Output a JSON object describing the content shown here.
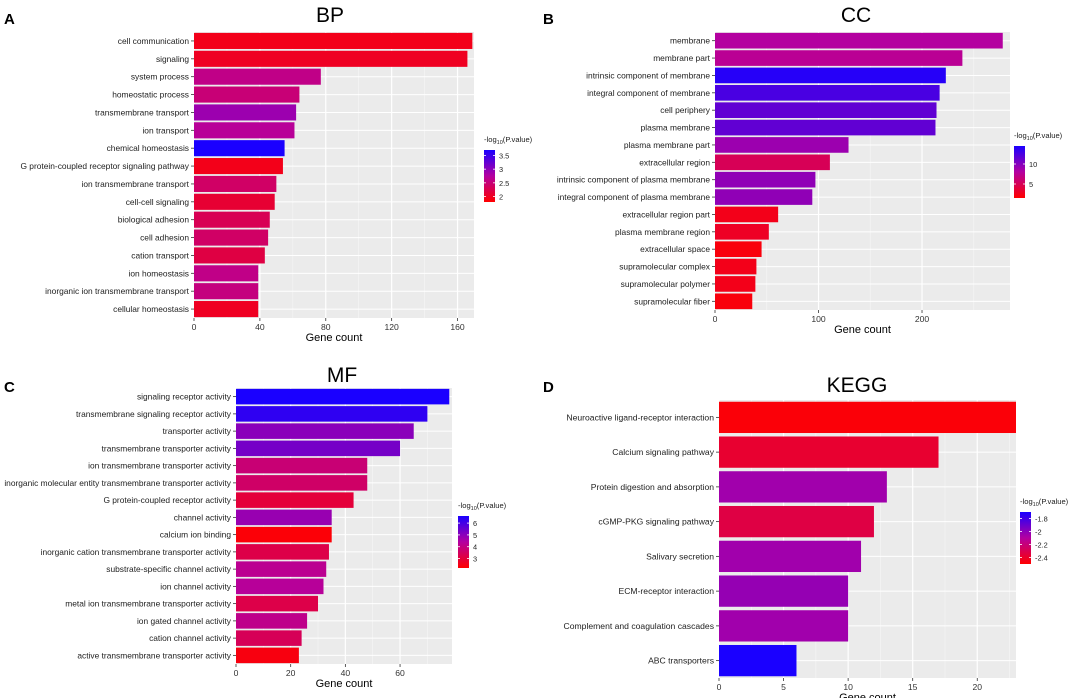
{
  "chart_data": [
    {
      "panel": "A",
      "type": "bar",
      "orientation": "horizontal",
      "title": "BP",
      "xlabel": "Gene count",
      "ylabel": "",
      "xlim": [
        0,
        170
      ],
      "xticks": [
        0,
        40,
        80,
        120,
        160
      ],
      "grid": true,
      "legend": {
        "title_prefix": "-log",
        "title_sub": "10",
        "title_suffix": "(P.value)",
        "ticks": [
          3.5,
          3.0,
          2.5,
          2.0
        ],
        "range": [
          1.8,
          3.7
        ],
        "colors": [
          "#ff0000",
          "#1a00ff"
        ],
        "placement": "right"
      },
      "categories": [
        "cell communication",
        "signaling",
        "system process",
        "homeostatic process",
        "transmembrane transport",
        "ion transport",
        "chemical homeostasis",
        "G protein-coupled receptor signaling pathway",
        "ion transmembrane transport",
        "cell-cell signaling",
        "biological adhesion",
        "cell adhesion",
        "cation transport",
        "ion homeostasis",
        "inorganic ion transmembrane transport",
        "cellular homeostasis"
      ],
      "values": [
        169,
        166,
        77,
        64,
        62,
        61,
        55,
        54,
        50,
        49,
        46,
        45,
        43,
        39,
        39,
        39
      ],
      "color_values": [
        1.95,
        2.0,
        2.6,
        2.5,
        2.9,
        2.7,
        3.7,
        1.95,
        2.4,
        2.1,
        2.3,
        2.4,
        2.2,
        2.6,
        2.55,
        2.0
      ]
    },
    {
      "panel": "B",
      "type": "bar",
      "orientation": "horizontal",
      "title": "CC",
      "xlabel": "Gene count",
      "ylabel": "",
      "xlim": [
        0,
        285
      ],
      "xticks": [
        0,
        100,
        200
      ],
      "grid": true,
      "legend": {
        "title_prefix": "-log",
        "title_sub": "10",
        "title_suffix": "(P.value)",
        "ticks": [
          10,
          5
        ],
        "range": [
          1.5,
          14.5
        ],
        "colors": [
          "#ff0000",
          "#1a00ff"
        ],
        "placement": "right"
      },
      "categories": [
        "membrane",
        "membrane part",
        "intrinsic component of membrane",
        "integral component of membrane",
        "cell periphery",
        "plasma membrane",
        "plasma membrane part",
        "extracellular region",
        "intrinsic component of plasma membrane",
        "integral component of plasma membrane",
        "extracellular region part",
        "plasma membrane region",
        "extracellular space",
        "supramolecular complex",
        "supramolecular polymer",
        "supramolecular fiber"
      ],
      "values": [
        278,
        239,
        223,
        217,
        214,
        213,
        129,
        111,
        97,
        94,
        61,
        52,
        45,
        40,
        39,
        36
      ],
      "color_values": [
        8.0,
        7.5,
        14.0,
        12.5,
        11.5,
        11.5,
        9.0,
        5.0,
        9.5,
        9.5,
        2.5,
        3.0,
        2.0,
        2.5,
        2.5,
        2.0
      ]
    },
    {
      "panel": "C",
      "type": "bar",
      "orientation": "horizontal",
      "title": "MF",
      "xlabel": "Gene count",
      "ylabel": "",
      "xlim": [
        0,
        79
      ],
      "xticks": [
        0,
        20,
        40,
        60
      ],
      "grid": true,
      "legend": {
        "title_prefix": "-log",
        "title_sub": "10",
        "title_suffix": "(P.value)",
        "ticks": [
          6,
          5,
          4,
          3
        ],
        "range": [
          2.2,
          6.6
        ],
        "colors": [
          "#ff0000",
          "#1a00ff"
        ],
        "placement": "right"
      },
      "categories": [
        "signaling receptor activity",
        "transmembrane signaling receptor activity",
        "transporter activity",
        "transmembrane transporter activity",
        "ion transmembrane transporter activity",
        "inorganic molecular entity transmembrane transporter activity",
        "G protein-coupled receptor activity",
        "channel activity",
        "calcium ion binding",
        "inorganic cation transmembrane transporter activity",
        "substrate-specific channel activity",
        "ion channel activity",
        "metal ion transmembrane transporter activity",
        "ion gated channel activity",
        "cation channel activity",
        "active transmembrane transporter activity"
      ],
      "values": [
        78,
        70,
        65,
        60,
        48,
        48,
        43,
        35,
        35,
        34,
        33,
        32,
        30,
        26,
        24,
        23
      ],
      "color_values": [
        6.6,
        6.3,
        5.0,
        5.3,
        3.8,
        3.6,
        3.0,
        4.8,
        2.3,
        3.2,
        4.2,
        4.3,
        3.2,
        4.1,
        3.4,
        2.4
      ]
    },
    {
      "panel": "D",
      "type": "bar",
      "orientation": "horizontal",
      "title": "KEGG",
      "xlabel": "Gene count",
      "ylabel": "",
      "xlim": [
        0,
        23
      ],
      "xticks": [
        0,
        5,
        10,
        15,
        20
      ],
      "grid": true,
      "legend": {
        "title_prefix": "-log",
        "title_sub": "10",
        "title_suffix": "(P.value)",
        "ticks": [
          -1.8,
          -2.0,
          -2.2,
          -2.4
        ],
        "range": [
          -2.5,
          -1.7
        ],
        "colors": [
          "#ff0000",
          "#1a00ff"
        ],
        "placement": "right"
      },
      "categories": [
        "Neuroactive ligand-receptor interaction",
        "Calcium signaling pathway",
        "Protein digestion and absorption",
        "cGMP-PKG signaling pathway",
        "Salivary secretion",
        "ECM-receptor interaction",
        "Complement and coagulation cascades",
        "ABC transporters"
      ],
      "values": [
        23,
        17,
        13,
        12,
        11,
        10,
        10,
        6
      ],
      "color_values": [
        -2.48,
        -2.38,
        -2.05,
        -2.33,
        -2.05,
        -2.02,
        -2.05,
        -1.7
      ]
    }
  ]
}
